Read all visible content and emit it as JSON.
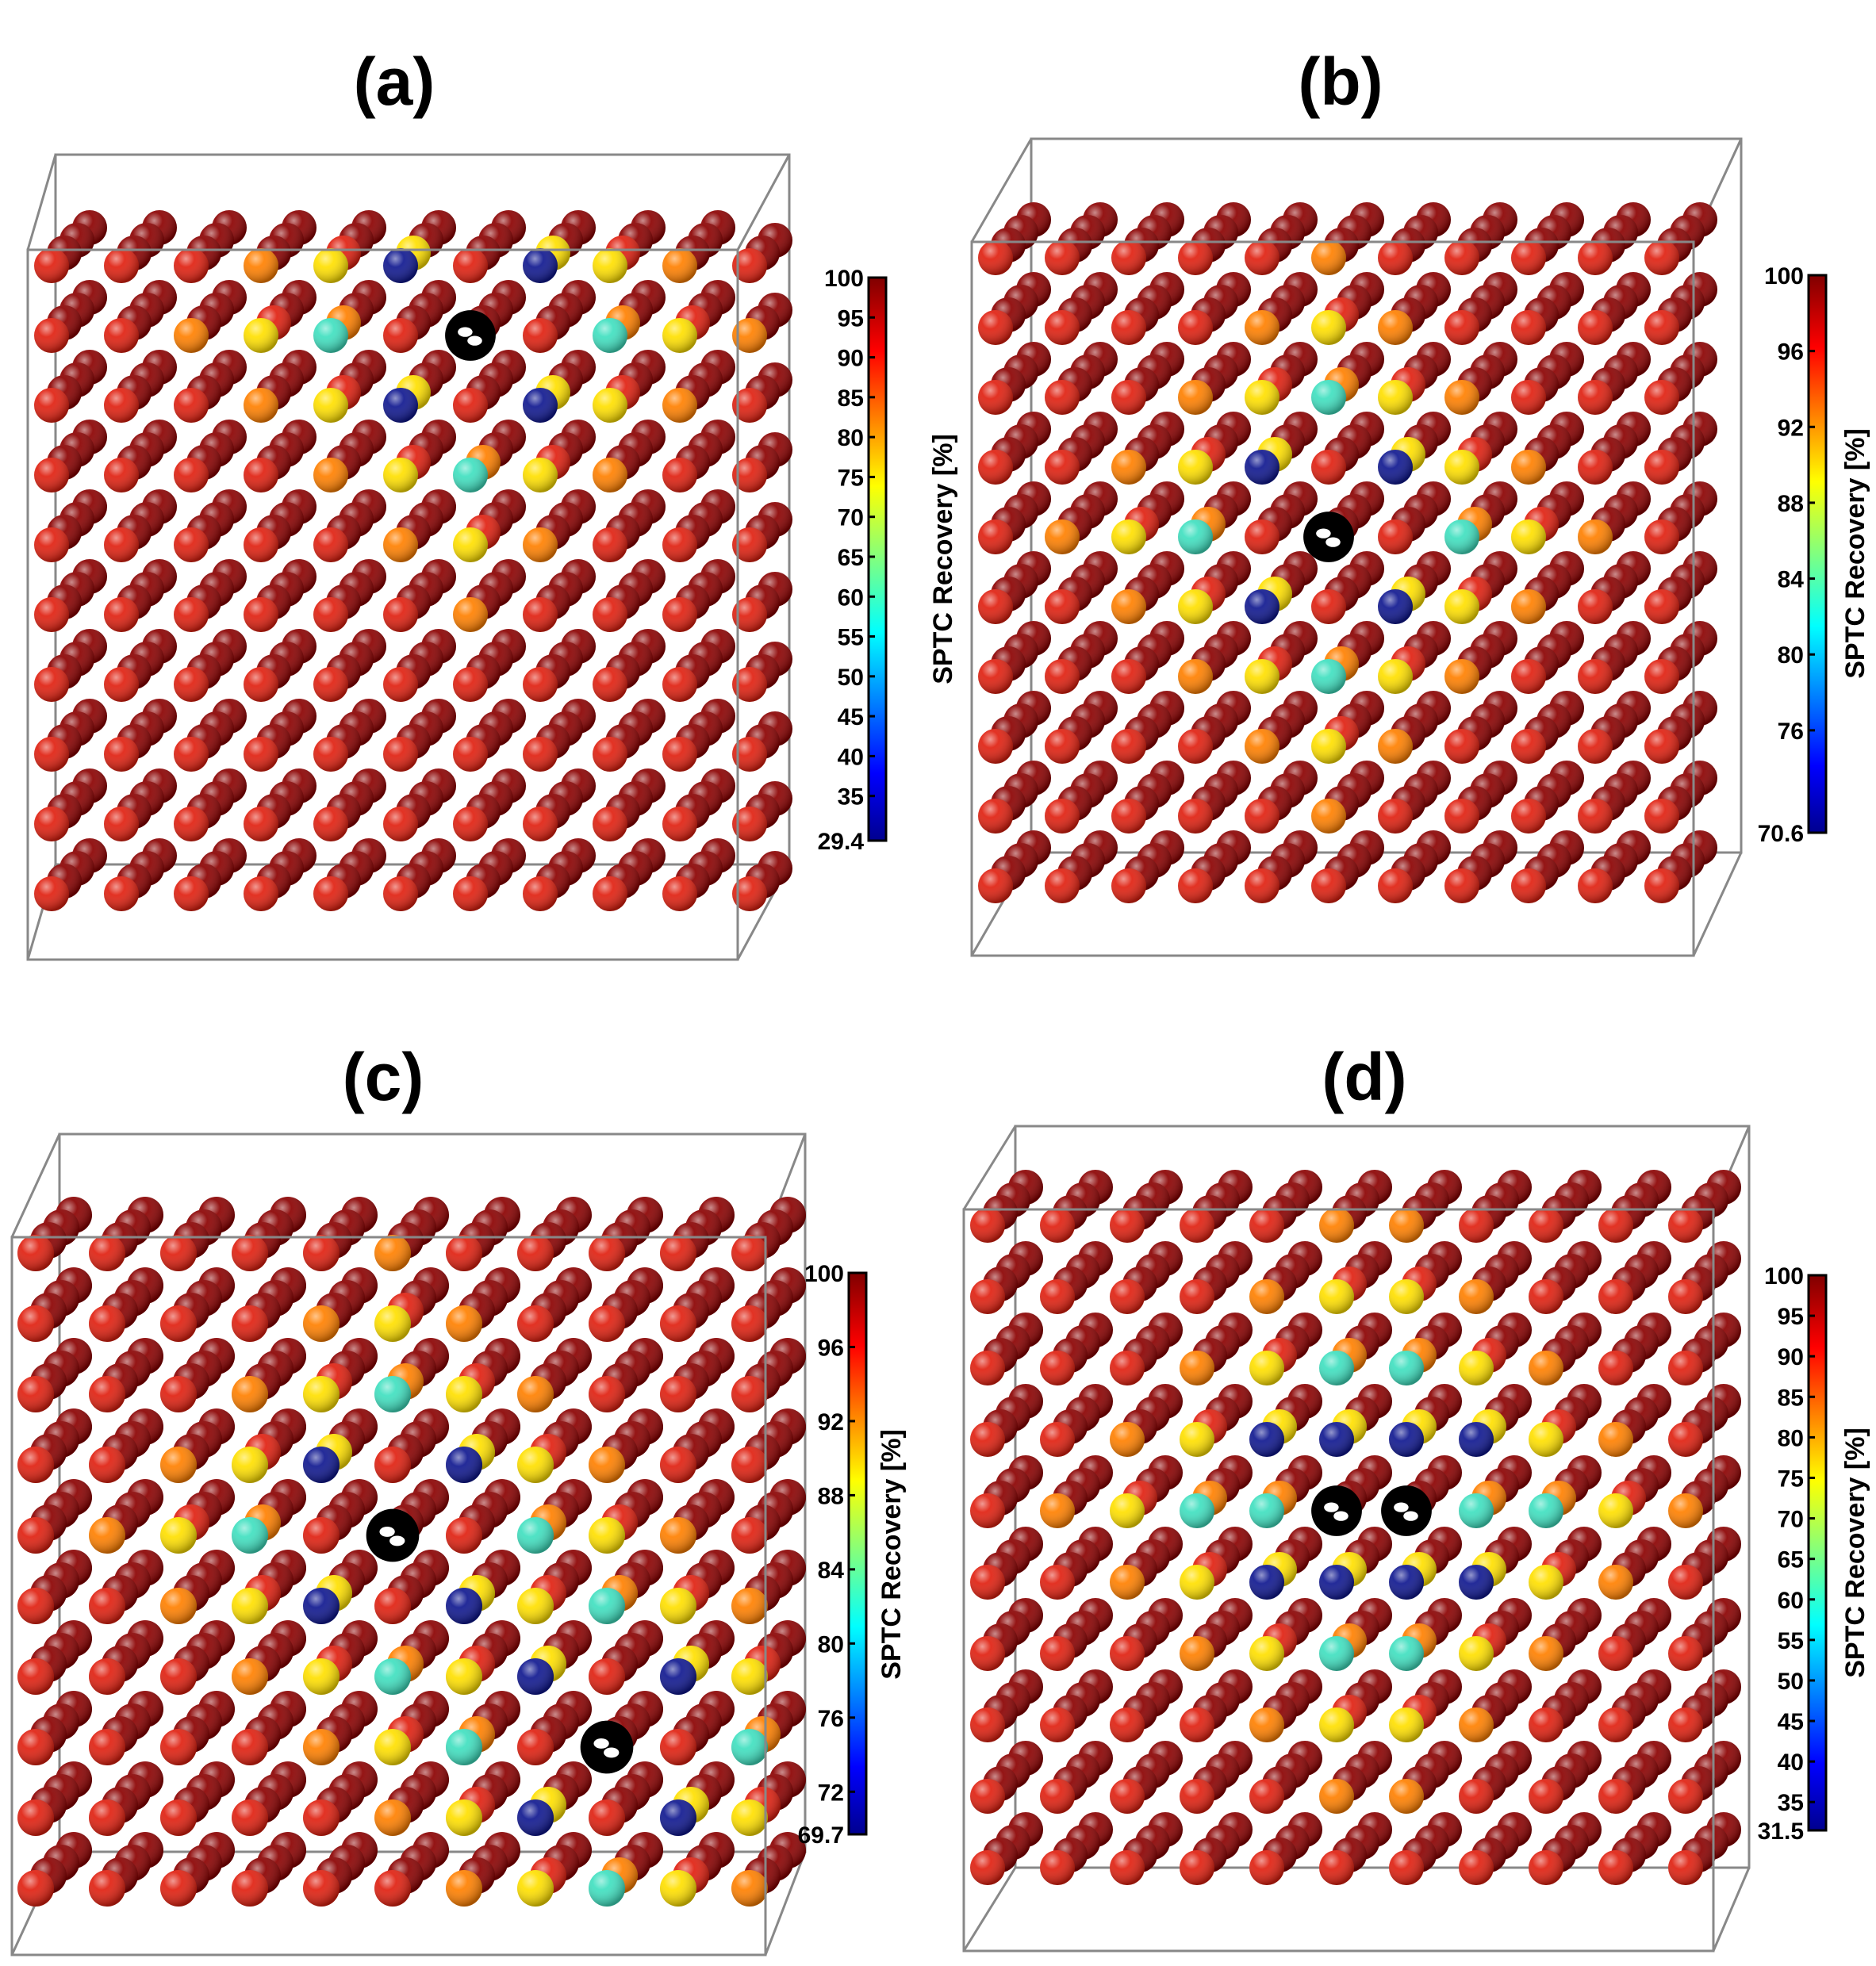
{
  "panels": [
    {
      "id": "a",
      "title": "(a)",
      "colorbar": {
        "label": "SPTC Recovery [%]",
        "min": 29.4,
        "max": 100,
        "ticks": [
          "100",
          "95",
          "90",
          "85",
          "80",
          "75",
          "70",
          "65",
          "60",
          "55",
          "50",
          "45",
          "40",
          "35",
          "29.4"
        ]
      },
      "defect_count": 1,
      "defect_description": "defect near top edge of box"
    },
    {
      "id": "b",
      "title": "(b)",
      "colorbar": {
        "label": "SPTC Recovery [%]",
        "min": 70.6,
        "max": 100,
        "ticks": [
          "100",
          "96",
          "92",
          "88",
          "84",
          "80",
          "76",
          "70.6"
        ]
      },
      "defect_count": 1,
      "defect_description": "single defect in center"
    },
    {
      "id": "c",
      "title": "(c)",
      "colorbar": {
        "label": "SPTC Recovery [%]",
        "min": 69.7,
        "max": 100,
        "ticks": [
          "100",
          "96",
          "92",
          "88",
          "84",
          "80",
          "76",
          "72",
          "69.7"
        ]
      },
      "defect_count": 2,
      "defect_description": "two separated defects"
    },
    {
      "id": "d",
      "title": "(d)",
      "colorbar": {
        "label": "SPTC Recovery [%]",
        "min": 31.5,
        "max": 100,
        "ticks": [
          "100",
          "95",
          "90",
          "85",
          "80",
          "75",
          "70",
          "65",
          "60",
          "55",
          "50",
          "45",
          "40",
          "35",
          "31.5"
        ]
      },
      "defect_count": 2,
      "defect_description": "adjacent defect pair in center"
    }
  ],
  "colors": {
    "high": "#8b0000",
    "mid_red": "#e02010",
    "orange": "#ff8000",
    "yellow": "#ffe000",
    "cyan": "#40e0c0",
    "blue": "#101890",
    "defect": "#000000",
    "box_edge": "#888888"
  }
}
